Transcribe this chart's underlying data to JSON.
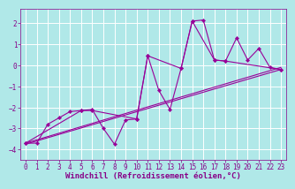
{
  "background_color": "#b0e8e8",
  "grid_color": "#aadddd",
  "line_color": "#990099",
  "marker_color": "#990099",
  "xlabel": "Windchill (Refroidissement éolien,°C)",
  "xlabel_fontsize": 6.5,
  "tick_fontsize": 5.5,
  "tick_color": "#880088",
  "label_color": "#880088",
  "xlim": [
    -0.5,
    23.5
  ],
  "ylim": [
    -4.5,
    2.7
  ],
  "yticks": [
    -4,
    -3,
    -2,
    -1,
    0,
    1,
    2
  ],
  "xticks": [
    0,
    1,
    2,
    3,
    4,
    5,
    6,
    7,
    8,
    9,
    10,
    11,
    12,
    13,
    14,
    15,
    16,
    17,
    18,
    19,
    20,
    21,
    22,
    23
  ],
  "series1_x": [
    0,
    1,
    2,
    3,
    4,
    5,
    6,
    7,
    8,
    9,
    10,
    11,
    12,
    13,
    14,
    15,
    16,
    17,
    18,
    19,
    20,
    21,
    22,
    23
  ],
  "series1_y": [
    -3.7,
    -3.7,
    -2.8,
    -2.5,
    -2.2,
    -2.15,
    -2.1,
    -3.0,
    -3.75,
    -2.6,
    -2.55,
    0.45,
    -1.2,
    -2.1,
    -0.15,
    2.1,
    2.15,
    0.25,
    0.2,
    1.3,
    0.25,
    0.8,
    -0.1,
    -0.2
  ],
  "series2_x": [
    0,
    5,
    6,
    10,
    11,
    14,
    15,
    17,
    18,
    23
  ],
  "series2_y": [
    -3.7,
    -2.15,
    -2.15,
    -2.55,
    0.45,
    -0.15,
    2.1,
    0.25,
    0.2,
    -0.2
  ],
  "trend1_x": [
    0,
    23
  ],
  "trend1_y": [
    -3.7,
    -0.1
  ],
  "trend2_x": [
    0,
    23
  ],
  "trend2_y": [
    -3.75,
    -0.2
  ]
}
